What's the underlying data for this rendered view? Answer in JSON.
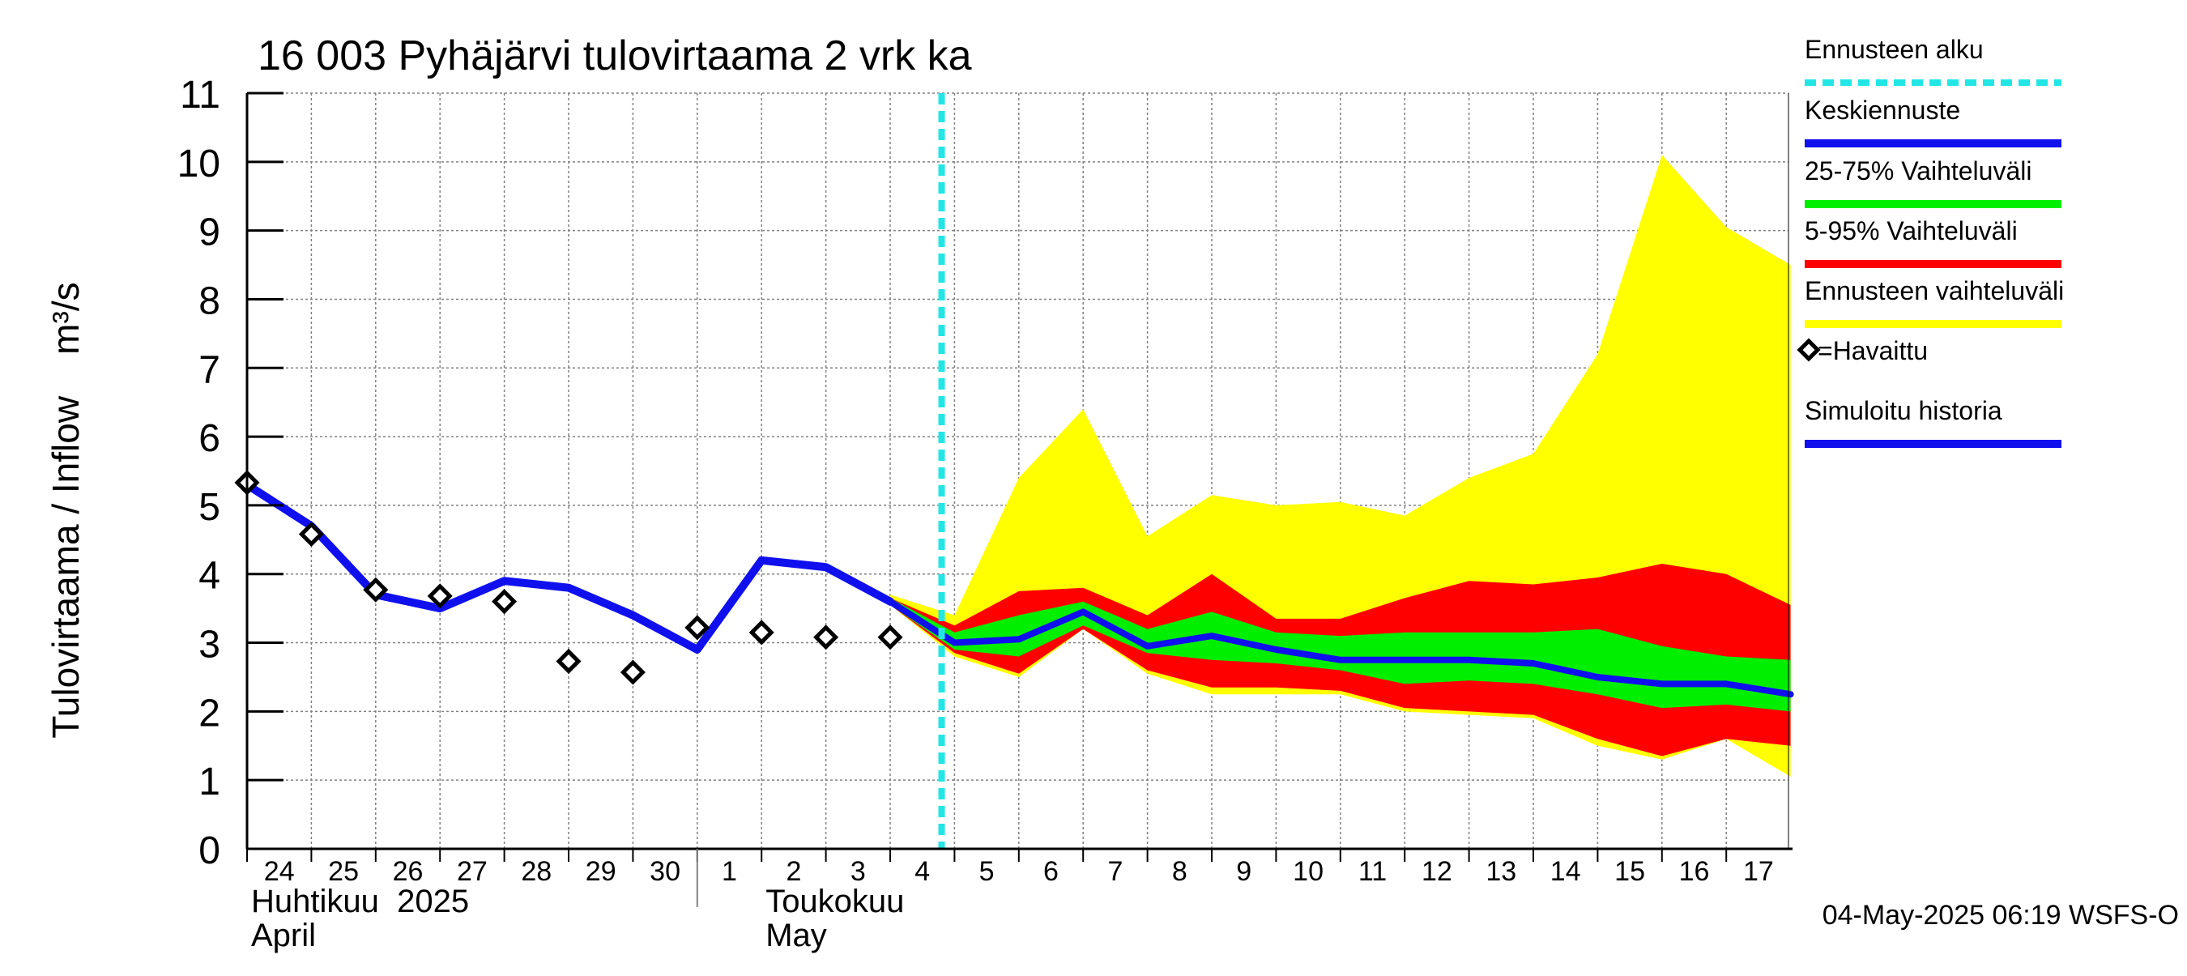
{
  "title": "16 003 Pyhäjärvi tulovirtaama 2 vrk ka",
  "timestamp": "04-May-2025 06:19 WSFS-O",
  "colors": {
    "forecast_start": "#22e6e6",
    "mean_forecast": "#1010ee",
    "band_25_75": "#00ee00",
    "band_5_95": "#ff0000",
    "band_range": "#ffff00",
    "simulated_history": "#1010ee",
    "observed": "#000000",
    "grid": "#808080",
    "axes": "#000000"
  },
  "chart_data": {
    "type": "line",
    "title": "16 003 Pyhäjärvi tulovirtaama 2 vrk ka",
    "ylabel": "Tulovirtaama / Inflow    m³/s",
    "ylim": [
      0,
      11
    ],
    "yticks": [
      "0",
      "1",
      "2",
      "3",
      "4",
      "5",
      "6",
      "7",
      "8",
      "9",
      "10",
      "11"
    ],
    "x_day_labels": [
      "24",
      "25",
      "26",
      "27",
      "28",
      "29",
      "30",
      "1",
      "2",
      "3",
      "4",
      "5",
      "6",
      "7",
      "8",
      "9",
      "10",
      "11",
      "12",
      "13",
      "14",
      "15",
      "16",
      "17"
    ],
    "month_labels": [
      {
        "line1": "Huhtikuu  2025",
        "line2": "April",
        "start_day_index": 0
      },
      {
        "line1": "Toukokuu",
        "line2": "May",
        "start_day_index": 8
      }
    ],
    "month_separator_day_index": 7,
    "grid": true,
    "legend_position": "right",
    "legend": [
      {
        "key": "forecast_start",
        "label": "Ennusteen alku",
        "style": "dashed"
      },
      {
        "key": "mean_forecast",
        "label": "Keskiennuste",
        "style": "line"
      },
      {
        "key": "band_25_75",
        "label": "25-75% Vaihteluväli",
        "style": "line"
      },
      {
        "key": "band_5_95",
        "label": "5-95% Vaihteluväli",
        "style": "line"
      },
      {
        "key": "band_range",
        "label": "Ennusteen vaihteluväli",
        "style": "line"
      },
      {
        "key": "observed",
        "label": "=Havaittu",
        "style": "marker"
      },
      {
        "key": "simulated_history",
        "label": "Simuloitu historia",
        "style": "line"
      }
    ],
    "forecast_start_x": 10.8,
    "simulated_history": {
      "x": [
        0,
        1,
        2,
        3,
        4,
        5,
        6,
        7,
        8,
        9,
        10
      ],
      "y": [
        5.3,
        4.7,
        3.7,
        3.5,
        3.9,
        3.8,
        3.4,
        2.9,
        4.2,
        4.1,
        3.6
      ]
    },
    "observed": {
      "x": [
        0,
        1,
        2,
        3,
        4,
        5,
        6,
        7,
        8,
        9,
        10
      ],
      "y": [
        5.33,
        4.58,
        3.77,
        3.68,
        3.6,
        2.73,
        2.57,
        3.22,
        3.15,
        3.08,
        3.08
      ]
    },
    "forecast": {
      "x": [
        10,
        11,
        12,
        13,
        14,
        15,
        16,
        17,
        18,
        19,
        20,
        21,
        22,
        23,
        24
      ],
      "range_max": [
        3.7,
        3.4,
        5.4,
        6.4,
        4.55,
        5.15,
        5.0,
        5.05,
        4.85,
        5.4,
        5.75,
        7.2,
        10.1,
        9.05,
        8.5
      ],
      "range_min": [
        3.55,
        2.8,
        2.5,
        3.2,
        2.55,
        2.25,
        2.25,
        2.25,
        2.0,
        1.95,
        1.9,
        1.5,
        1.3,
        1.6,
        1.05
      ],
      "p95": [
        3.65,
        3.25,
        3.75,
        3.8,
        3.4,
        4.0,
        3.35,
        3.35,
        3.65,
        3.9,
        3.85,
        3.95,
        4.15,
        4.0,
        3.55
      ],
      "p5": [
        3.55,
        2.85,
        2.55,
        3.2,
        2.6,
        2.35,
        2.35,
        2.3,
        2.05,
        2.0,
        1.95,
        1.6,
        1.35,
        1.6,
        1.5
      ],
      "p75": [
        3.65,
        3.15,
        3.4,
        3.6,
        3.2,
        3.45,
        3.15,
        3.1,
        3.15,
        3.15,
        3.15,
        3.2,
        2.95,
        2.8,
        2.75
      ],
      "p25": [
        3.55,
        2.9,
        2.8,
        3.25,
        2.85,
        2.75,
        2.7,
        2.6,
        2.4,
        2.45,
        2.4,
        2.25,
        2.05,
        2.1,
        2.0
      ],
      "mean": [
        3.6,
        3.0,
        3.05,
        3.45,
        2.95,
        3.1,
        2.9,
        2.75,
        2.75,
        2.75,
        2.7,
        2.5,
        2.4,
        2.4,
        2.25
      ]
    }
  }
}
